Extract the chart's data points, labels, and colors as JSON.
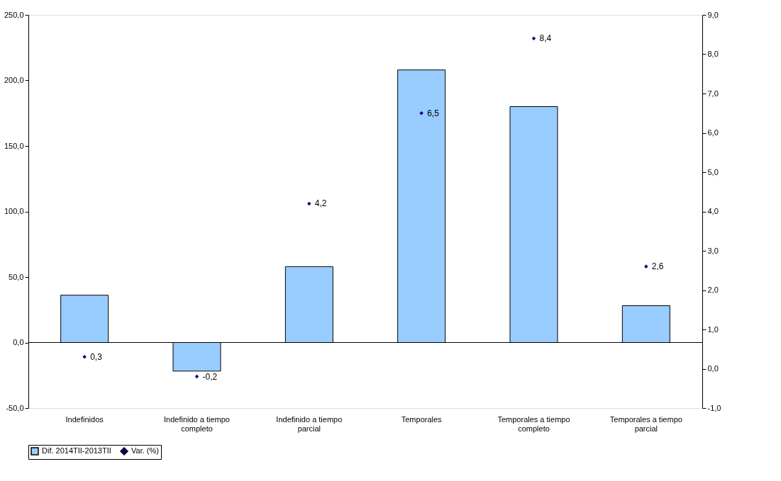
{
  "chart_data": {
    "type": "bar",
    "categories": [
      "Indefinidos",
      "Indefinido a tiempo completo",
      "Indefinido a tiempo parcial",
      "Temporales",
      "Temporales a tiempo completo",
      "Temporales a tiempo parcial"
    ],
    "series": [
      {
        "name": "Dif. 2014TII-2013TII",
        "color": "#99ccff",
        "values": [
          36.1,
          -21.8,
          57.9,
          208.0,
          180.0,
          28.1
        ]
      },
      {
        "name": "Var. (%)",
        "type": "scatter",
        "axis": "y2",
        "color": "#000080",
        "marker": "diamond",
        "values": [
          0.3,
          -0.2,
          4.2,
          6.5,
          8.4,
          2.6
        ],
        "value_labels": [
          "0,3",
          "-0,2",
          "4,2",
          "6,5",
          "8,4",
          "2,6"
        ]
      }
    ],
    "ylim": [
      -50,
      250
    ],
    "yticks": [
      {
        "value": -50,
        "label": "-50,0"
      },
      {
        "value": 0,
        "label": "0,0"
      },
      {
        "value": 50,
        "label": "50,0"
      },
      {
        "value": 100,
        "label": "100,0"
      },
      {
        "value": 150,
        "label": "150,0"
      },
      {
        "value": 200,
        "label": "200,0"
      },
      {
        "value": 250,
        "label": "250,0"
      }
    ],
    "y2lim": [
      -1,
      9
    ],
    "y2ticks": [
      {
        "value": -1,
        "label": "-1,0"
      },
      {
        "value": 0,
        "label": "0,0"
      },
      {
        "value": 1,
        "label": "1,0"
      },
      {
        "value": 2,
        "label": "2,0"
      },
      {
        "value": 3,
        "label": "3,0"
      },
      {
        "value": 4,
        "label": "4,0"
      },
      {
        "value": 5,
        "label": "5,0"
      },
      {
        "value": 6,
        "label": "6,0"
      },
      {
        "value": 7,
        "label": "7,0"
      },
      {
        "value": 8,
        "label": "8,0"
      },
      {
        "value": 9,
        "label": "9,0"
      }
    ],
    "ref_lines": [
      {
        "axis": "y",
        "value": 0,
        "color": "#000000"
      }
    ],
    "grid": false,
    "legend": "bottom"
  }
}
